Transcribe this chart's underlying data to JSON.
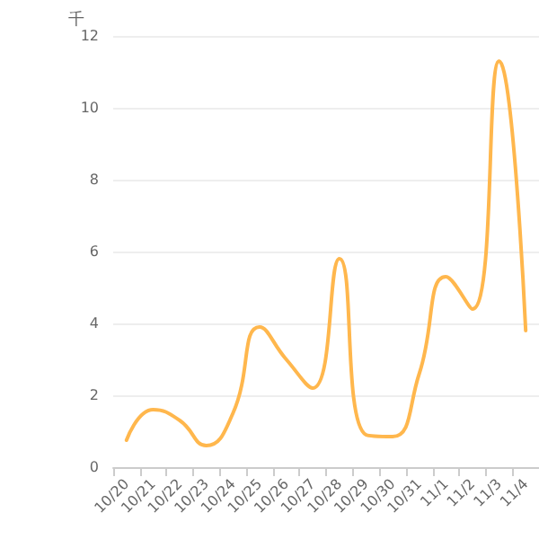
{
  "chart_data": {
    "type": "line",
    "ylabel": "千",
    "categories": [
      "10/20",
      "10/21",
      "10/22",
      "10/23",
      "10/24",
      "10/25",
      "10/26",
      "10/27",
      "10/28",
      "10/29",
      "10/30",
      "10/31",
      "11/1",
      "11/2",
      "11/3",
      "11/4"
    ],
    "series": [
      {
        "color": "#ffb74d",
        "values": [
          0.75,
          1.6,
          1.3,
          0.6,
          1.5,
          3.9,
          3.0,
          2.2,
          5.8,
          0.9,
          0.85,
          2.6,
          5.3,
          4.4,
          11.3,
          3.8
        ]
      }
    ],
    "ylim": [
      0,
      12
    ],
    "yticks": [
      0,
      2,
      4,
      6,
      8,
      10,
      12
    ],
    "grid": "y",
    "marker": "none",
    "line_style": "solid"
  }
}
